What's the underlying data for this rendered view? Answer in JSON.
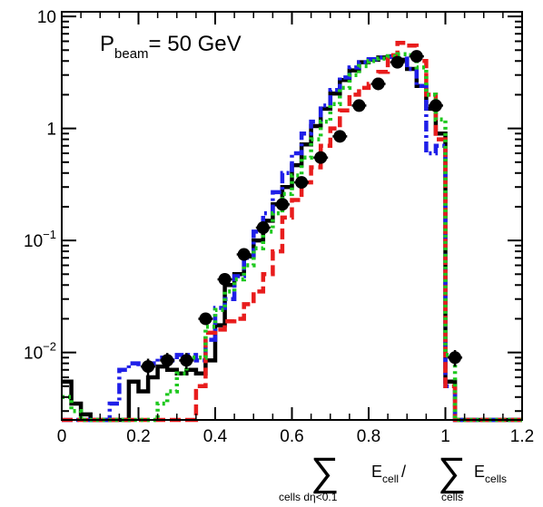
{
  "chart_data": {
    "type": "line",
    "title": "",
    "annotation": {
      "main": "P",
      "sub": "beam",
      "rest": "= 50 GeV"
    },
    "xlabel": {
      "sum1_sub": "cells dη<0.1",
      "term1": "E",
      "term1_sub": "cell",
      "slash": "/",
      "sum2_sub": "cells",
      "term2": "E",
      "term2_sub": "cells"
    },
    "ylabel": "",
    "xlim": [
      0,
      1.2
    ],
    "ylim": [
      0.0025,
      11
    ],
    "yscale": "log",
    "grid": false,
    "xticks": [
      0,
      0.2,
      0.4,
      0.6,
      0.8,
      1,
      1.2
    ],
    "xtick_labels": [
      "0",
      "0.2",
      "0.4",
      "0.6",
      "0.8",
      "1",
      "1.2"
    ],
    "yticks": [
      {
        "value": 0.01,
        "base": "10",
        "exp": "−2"
      },
      {
        "value": 0.1,
        "base": "10",
        "exp": "−1"
      },
      {
        "value": 1,
        "base": "1",
        "exp": ""
      },
      {
        "value": 10,
        "base": "10",
        "exp": ""
      }
    ],
    "series": [
      {
        "style": "histogram",
        "color": "#000000",
        "dash": "none",
        "bin_edges": [
          0,
          0.025,
          0.05,
          0.075,
          0.1,
          0.125,
          0.15,
          0.175,
          0.2,
          0.225,
          0.25,
          0.275,
          0.3,
          0.325,
          0.35,
          0.375,
          0.4,
          0.425,
          0.45,
          0.475,
          0.5,
          0.525,
          0.55,
          0.575,
          0.6,
          0.625,
          0.65,
          0.675,
          0.7,
          0.725,
          0.75,
          0.775,
          0.8,
          0.825,
          0.85,
          0.875,
          0.9,
          0.925,
          0.95,
          0.975,
          1,
          1.025,
          1.05,
          1.075,
          1.1,
          1.125,
          1.15,
          1.175,
          1.2
        ],
        "values": [
          0.0055,
          0.0035,
          0.0028,
          0.0025,
          0.0025,
          0.0025,
          0.0025,
          0.0055,
          0.0045,
          0.006,
          0.0075,
          0.007,
          0.0065,
          0.007,
          0.0065,
          0.0085,
          0.0175,
          0.04,
          0.05,
          0.072,
          0.1,
          0.15,
          0.21,
          0.3,
          0.47,
          0.72,
          1.05,
          1.5,
          2.05,
          2.7,
          3.3,
          3.9,
          4.1,
          4.3,
          4.4,
          4.1,
          3.4,
          2.4,
          1.5,
          0.9,
          0.0055,
          0.0025,
          0.0025,
          0.0025,
          0.0025,
          0.0025,
          0.0025,
          0.0025
        ]
      },
      {
        "style": "histogram",
        "color": "#1f1fe8",
        "dash": "12 4 3 4",
        "bin_edges": [
          0,
          0.025,
          0.05,
          0.075,
          0.1,
          0.125,
          0.15,
          0.175,
          0.2,
          0.225,
          0.25,
          0.275,
          0.3,
          0.325,
          0.35,
          0.375,
          0.4,
          0.425,
          0.45,
          0.475,
          0.5,
          0.525,
          0.55,
          0.575,
          0.6,
          0.625,
          0.65,
          0.675,
          0.7,
          0.725,
          0.75,
          0.775,
          0.8,
          0.825,
          0.85,
          0.875,
          0.9,
          0.925,
          0.95,
          0.975,
          1,
          1.025,
          1.05,
          1.075,
          1.1,
          1.125,
          1.15,
          1.175,
          1.2
        ],
        "values": [
          0.0025,
          0.0025,
          0.0025,
          0.0025,
          0.0025,
          0.0035,
          0.007,
          0.008,
          0.0075,
          0.008,
          0.009,
          0.0085,
          0.0095,
          0.0095,
          0.0085,
          0.013,
          0.025,
          0.03,
          0.048,
          0.07,
          0.12,
          0.175,
          0.27,
          0.4,
          0.6,
          0.9,
          1.15,
          1.6,
          2.2,
          2.85,
          3.5,
          3.9,
          4.15,
          4.3,
          4.35,
          4.2,
          3.4,
          2.4,
          0.6,
          0.7,
          0.005,
          0.0025,
          0.0025,
          0.0025,
          0.0025,
          0.0025,
          0.0025,
          0.0025
        ]
      },
      {
        "style": "histogram",
        "color": "#e81c1c",
        "dash": "12 5",
        "bin_edges": [
          0,
          0.025,
          0.05,
          0.075,
          0.1,
          0.125,
          0.15,
          0.175,
          0.2,
          0.225,
          0.25,
          0.275,
          0.3,
          0.325,
          0.35,
          0.375,
          0.4,
          0.425,
          0.45,
          0.475,
          0.5,
          0.525,
          0.55,
          0.575,
          0.6,
          0.625,
          0.65,
          0.675,
          0.7,
          0.725,
          0.75,
          0.775,
          0.8,
          0.825,
          0.85,
          0.875,
          0.9,
          0.925,
          0.95,
          0.975,
          1,
          1.025,
          1.05,
          1.075,
          1.1,
          1.125,
          1.15,
          1.175,
          1.2
        ],
        "values": [
          0.0025,
          0.0025,
          0.0025,
          0.0025,
          0.0025,
          0.0025,
          0.0025,
          0.0025,
          0.0025,
          0.0025,
          0.0025,
          0.0025,
          0.0025,
          0.0025,
          0.005,
          0.015,
          0.016,
          0.019,
          0.02,
          0.027,
          0.035,
          0.05,
          0.08,
          0.16,
          0.23,
          0.33,
          0.45,
          0.7,
          1.0,
          1.45,
          2.0,
          2.3,
          2.5,
          3.2,
          4.5,
          5.8,
          5.5,
          4.0,
          2.0,
          0.8,
          0.005,
          0.0025,
          0.0025,
          0.0025,
          0.0025,
          0.0025,
          0.0025,
          0.0025
        ]
      },
      {
        "style": "histogram",
        "color": "#1ec81e",
        "dash": "3 4",
        "bin_edges": [
          0,
          0.025,
          0.05,
          0.075,
          0.1,
          0.125,
          0.15,
          0.175,
          0.2,
          0.225,
          0.25,
          0.275,
          0.3,
          0.325,
          0.35,
          0.375,
          0.4,
          0.425,
          0.45,
          0.475,
          0.5,
          0.525,
          0.55,
          0.575,
          0.6,
          0.625,
          0.65,
          0.675,
          0.7,
          0.725,
          0.75,
          0.775,
          0.8,
          0.825,
          0.85,
          0.875,
          0.9,
          0.925,
          0.95,
          0.975,
          1,
          1.025,
          1.05,
          1.075,
          1.1,
          1.125,
          1.15,
          1.175,
          1.2
        ],
        "values": [
          0.004,
          0.003,
          0.0025,
          0.0025,
          0.0025,
          0.0025,
          0.0025,
          0.0025,
          0.0025,
          0.0025,
          0.0035,
          0.0045,
          0.0065,
          0.009,
          0.009,
          0.017,
          0.024,
          0.035,
          0.045,
          0.06,
          0.085,
          0.12,
          0.175,
          0.26,
          0.38,
          0.55,
          0.8,
          1.15,
          1.65,
          2.3,
          3.0,
          3.6,
          4.0,
          4.2,
          4.4,
          4.6,
          4.5,
          3.5,
          2.0,
          1.2,
          0.0095,
          0.0025,
          0.0025,
          0.0025,
          0.0025,
          0.0025,
          0.0025,
          0.0025
        ]
      },
      {
        "style": "points",
        "color": "#000000",
        "x": [
          0.225,
          0.275,
          0.325,
          0.375,
          0.425,
          0.475,
          0.525,
          0.575,
          0.625,
          0.675,
          0.725,
          0.775,
          0.825,
          0.875,
          0.925,
          0.975,
          1.025
        ],
        "y": [
          0.0075,
          0.0085,
          0.0085,
          0.02,
          0.045,
          0.075,
          0.13,
          0.21,
          0.33,
          0.55,
          0.85,
          1.6,
          2.5,
          3.9,
          4.4,
          1.6,
          0.009
        ],
        "yerr": [
          0.0013,
          0.0014,
          0.0014,
          0.002,
          0.003,
          0.004,
          0.005,
          0.007,
          0.01,
          0.015,
          0.02,
          0.03,
          0.04,
          0.05,
          0.05,
          0.03,
          0.0015
        ]
      }
    ]
  }
}
